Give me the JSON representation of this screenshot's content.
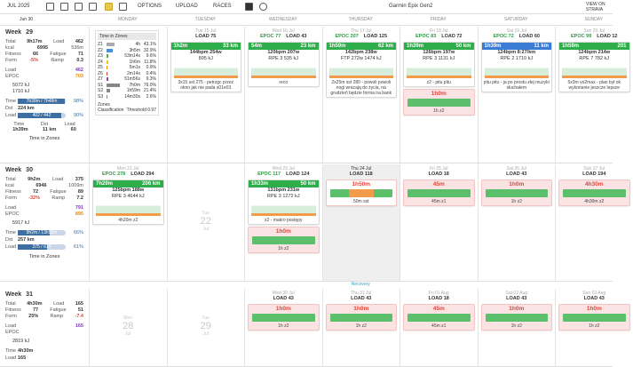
{
  "toolbar": {
    "month": "JUL 2025",
    "menus": [
      "OPTIONS",
      "UPLOAD",
      "RACES"
    ],
    "device": "Garmin Epix Gen2",
    "strava": "VIEW ON STRAVA"
  },
  "header": {
    "first_date": "Jun 30",
    "days": [
      "MONDAY",
      "TUESDAY",
      "WEDNESDAY",
      "THURSDAY",
      "FRIDAY",
      "SATURDAY",
      "SUNDAY"
    ]
  },
  "recovery": "Recovery",
  "weeks": [
    {
      "label": "Week",
      "number": "29",
      "stats": [
        [
          "Total",
          "9h17m",
          "Load",
          "462"
        ],
        [
          "kcal",
          "6995",
          "536m"
        ],
        [
          "Fitness",
          "66",
          "Fatigue",
          "71"
        ],
        [
          "Form",
          "-5%",
          "Ramp",
          "0.3"
        ]
      ],
      "load": [
        [
          "Load",
          "462"
        ],
        [
          "EPOC",
          "703"
        ]
      ],
      "energy": [
        "5072 kJ",
        "1710 kJ"
      ],
      "progress": [
        {
          "label": "Time",
          "bar": "7h38m / 7h48m",
          "pct": "98%"
        },
        {
          "label": "Dst",
          "bar": "224 km"
        },
        {
          "label": "Load",
          "bar": "402 / 442",
          "pct": "90%"
        }
      ],
      "run": {
        "head": [
          "Time",
          "Dst",
          "Load"
        ],
        "row": [
          "1h39m",
          "11 km",
          "60"
        ]
      },
      "zones_link": "Time in Zones",
      "days": [
        {
          "zones": {
            "title": "Time in Zones",
            "rows": [
              [
                "Z1",
                "4h",
                "43.1%"
              ],
              [
                "Z2",
                "3h5m",
                "32.9%"
              ],
              [
                "Z3",
                "53m14s",
                "9.6%"
              ],
              [
                "Z4",
                "1h6m",
                "11.8%"
              ],
              [
                "Z5",
                "5m1s",
                "0.9%"
              ],
              [
                "Z6",
                "2m14s",
                "0.4%"
              ],
              [
                "Z7",
                "51m56s",
                "9.3%"
              ],
              [
                "S1",
                "7h0m",
                "76.0%"
              ],
              [
                "S2",
                "1h59m",
                "21.4%"
              ],
              [
                "S3",
                "14m30s",
                "2.6%"
              ]
            ],
            "classification": "Zones Classification",
            "threshold": "Threshold 0.97"
          }
        },
        {
          "date": "Tue 15 Jul",
          "metrics": [
            "LOAD 75"
          ],
          "cards": [
            {
              "kind": "ride",
              "head": [
                "1h2m",
                "33 km"
              ],
              "lines": [
                "144bpm 254w",
                "895 kJ"
              ],
              "note": "3x15 sst 275 - petrzgc przez okno jak nie pada s01e03"
            }
          ]
        },
        {
          "date": "Wed 16 Jul",
          "metrics": [
            "EPOC 77",
            "LOAD 43"
          ],
          "cards": [
            {
              "kind": "ride",
              "head": [
                "54m",
                "23 km"
              ],
              "lines": [
                "120bpm 207w",
                "RPE 3 535 kJ"
              ],
              "note": "reco"
            }
          ]
        },
        {
          "date": "Thu 17 Jul",
          "metrics": [
            "EPOC 207",
            "LOAD 125"
          ],
          "cards": [
            {
              "kind": "ride",
              "head": [
                "1h59m",
                "62 km"
              ],
              "lines": [
                "142bpm 238w",
                "FTP 272w 1474 kJ"
              ],
              "note": "2x25m sst 280 - powoli powoli nogi wracają do życia, na grudzień będzie forma na bank"
            }
          ]
        },
        {
          "date": "Fri 18 Jul",
          "metrics": [
            "EPOC 83",
            "LOAD 72"
          ],
          "cards": [
            {
              "kind": "ride",
              "head": [
                "1h39m",
                "50 km"
              ],
              "lines": [
                "126bpm 197w",
                "RPE 3 1131 kJ"
              ],
              "note": "z2 - pitu pitu"
            },
            {
              "kind": "plan",
              "head": [
                "1h0m"
              ],
              "note": "1h z2"
            }
          ]
        },
        {
          "date": "Sat 19 Jul",
          "metrics": [
            "EPOC 72",
            "LOAD 60"
          ],
          "cards": [
            {
              "kind": "run",
              "head": [
                "1h39m",
                "11 km"
              ],
              "lines": [
                "124bpm 8:27/km",
                "RPE 2 1710 kJ"
              ],
              "note": "pitu pitu - ja po prostu złej muzyki słuchałem"
            }
          ]
        },
        {
          "date": "Sun 20 Jul",
          "metrics": [
            "EPOC 99",
            "LOAD 12"
          ],
          "cards": [
            {
              "kind": "ride",
              "head": [
                "1h59m",
                "201"
              ],
              "lines": [
                "124bpm 214w",
                "RPE 7 782 kJ"
              ],
              "note": "5x3m vo2max - plan był ok wykonanie jeszcze lepsze"
            }
          ]
        }
      ]
    },
    {
      "label": "Week",
      "number": "30",
      "stats": [
        [
          "Total",
          "9h2m",
          "Load",
          "375"
        ],
        [
          "kcal",
          "6946",
          "1009m"
        ],
        [
          "Fitness",
          "72",
          "Fatigue",
          "89"
        ],
        [
          "Form",
          "-32%",
          "Ramp",
          "7.2"
        ]
      ],
      "load": [
        [
          "Load",
          "791"
        ],
        [
          "EPOC",
          "895"
        ]
      ],
      "energy": [
        "5917 kJ"
      ],
      "progress": [
        {
          "label": "Time",
          "bar": "9h2m / 13h59m",
          "pct": "66%"
        },
        {
          "label": "Dst",
          "bar": "257 km"
        },
        {
          "label": "Load",
          "bar": "375 / 610",
          "pct": "61%"
        }
      ],
      "zones_link": "Time in Zones",
      "days": [
        {
          "date": "Mon 21 Jul",
          "metrics": [
            "EPOC 278",
            "LOAD 294"
          ],
          "cards": [
            {
              "kind": "ride",
              "head": [
                "7h29m",
                "206 km"
              ],
              "lines": [
                "125bpm 188w",
                "RPE 3 4644 kJ"
              ],
              "note": "4h20m z2"
            }
          ]
        },
        {
          "empty": {
            "dow": "Tue",
            "day": "22",
            "month": "Jul"
          }
        },
        {
          "date": "Wed 23 Jul",
          "metrics": [
            "EPOC 117",
            "LOAD 124"
          ],
          "cards": [
            {
              "kind": "ride",
              "head": [
                "1h33m",
                "50 km"
              ],
              "lines": [
                "131bpm 231w",
                "RPE 3 1272 kJ"
              ],
              "note": "z2 - makro postępy"
            },
            {
              "kind": "plan",
              "head": [
                "1h0m"
              ],
              "note": "1h z2"
            }
          ]
        },
        {
          "today": true,
          "date": "Thu 24 Jul",
          "metrics": [
            "LOAD 118"
          ],
          "cards": [
            {
              "kind": "plan",
              "head": [
                "1h50m"
              ],
              "note": "50m sst"
            }
          ]
        },
        {
          "date": "Fri 25 Jul",
          "metrics": [
            "LOAD 18"
          ],
          "cards": [
            {
              "kind": "plan",
              "head": [
                "45m"
              ],
              "note": "45m z1"
            }
          ]
        },
        {
          "date": "Sat 26 Jul",
          "metrics": [
            "LOAD 43"
          ],
          "cards": [
            {
              "kind": "plan",
              "head": [
                "1h0m"
              ],
              "note": "1h z2"
            }
          ]
        },
        {
          "date": "Sun 27 Jul",
          "metrics": [
            "LOAD 194"
          ],
          "cards": [
            {
              "kind": "plan",
              "head": [
                "4h30m"
              ],
              "note": "4h30m z2"
            }
          ]
        }
      ]
    },
    {
      "label": "Week",
      "number": "31",
      "stats": [
        [
          "Total",
          "4h30m",
          "Load",
          "165"
        ],
        [
          "Fitness",
          "77",
          "Fatigue",
          "51"
        ],
        [
          "Form",
          "25%",
          "Ramp",
          "-7.4"
        ]
      ],
      "load": [
        [
          "Load",
          "165"
        ],
        [
          "EPOC"
        ]
      ],
      "energy": [
        "2819 kJ"
      ],
      "progress": [
        {
          "label": "Time",
          "bar": "4h30m"
        },
        {
          "label": "Load",
          "bar": "165"
        }
      ],
      "days": [
        {
          "empty": {
            "dow": "Mon",
            "day": "28",
            "month": "Jul"
          }
        },
        {
          "empty": {
            "dow": "Tue",
            "day": "29",
            "month": "Jul"
          }
        },
        {
          "date": "Wed 30 Jul",
          "metrics": [
            "LOAD 43"
          ],
          "cards": [
            {
              "kind": "plan",
              "head": [
                "1h0m"
              ],
              "note": "1h z2"
            }
          ]
        },
        {
          "date": "Thu 31 Jul",
          "metrics": [
            "LOAD 43"
          ],
          "cards": [
            {
              "kind": "plan",
              "head": [
                "1h0m"
              ],
              "note": "1h z2"
            }
          ]
        },
        {
          "date": "Fri 01 Aug",
          "metrics": [
            "LOAD 18"
          ],
          "cards": [
            {
              "kind": "plan",
              "head": [
                "45m"
              ],
              "note": "45m z1"
            }
          ]
        },
        {
          "date": "Sat 02 Aug",
          "metrics": [
            "LOAD 43"
          ],
          "cards": [
            {
              "kind": "plan",
              "head": [
                "1h0m"
              ],
              "note": "1h z2"
            }
          ]
        },
        {
          "date": "Sun 03 Aug",
          "metrics": [
            "LOAD 43"
          ],
          "cards": [
            {
              "kind": "plan",
              "head": [
                "1h0m"
              ],
              "note": "1h z2"
            }
          ]
        }
      ]
    }
  ]
}
